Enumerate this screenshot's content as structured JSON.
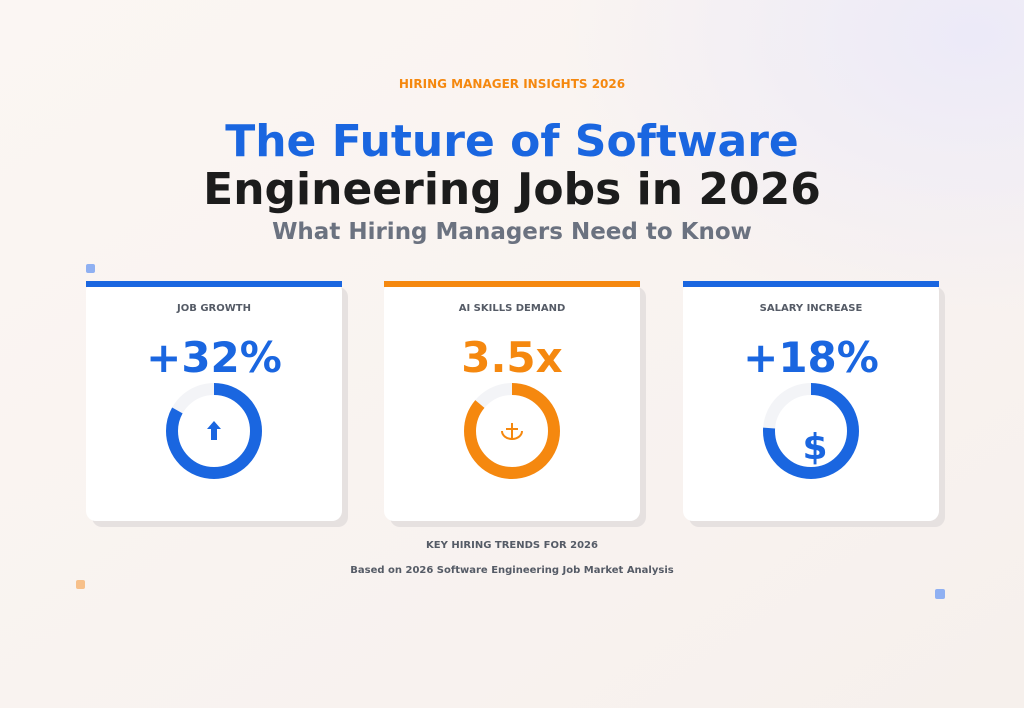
{
  "header": {
    "eyebrow": "HIRING MANAGER INSIGHTS 2026",
    "title_line1": "The Future of Software",
    "title_line2": "Engineering Jobs in 2026",
    "subtitle": "What Hiring Managers Need to Know"
  },
  "cards": [
    {
      "label": "JOB GROWTH",
      "value": "+32%"
    },
    {
      "label": "AI SKILLS DEMAND",
      "value": "3.5x"
    },
    {
      "label": "SALARY INCREASE",
      "value": "+18%",
      "icon": "$"
    }
  ],
  "footer": {
    "heading": "KEY HIRING TRENDS FOR 2026",
    "note": "Based on 2026 Software Engineering Job Market Analysis"
  }
}
